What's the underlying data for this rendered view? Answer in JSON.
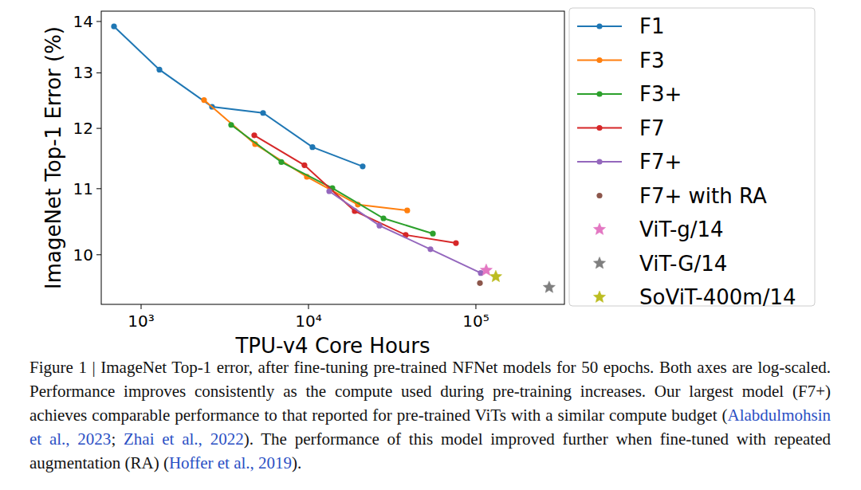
{
  "chart_data": {
    "type": "line",
    "x_label": "TPU-v4 Core Hours",
    "y_label": "ImageNet Top-1 Error (%)",
    "log": true,
    "grid": false,
    "legend": "right",
    "xlim": [
      578,
      338000
    ],
    "ylim": [
      9.31,
      14.21
    ],
    "xticks": [
      {
        "value": 1000,
        "label": "10³"
      },
      {
        "value": 10000,
        "label": "10⁴"
      },
      {
        "value": 100000,
        "label": "10⁵"
      }
    ],
    "yticks": [
      10,
      11,
      12,
      13,
      14
    ],
    "series": [
      {
        "name": "F1",
        "color": "#1f77b4",
        "type": "line",
        "marker": "circle",
        "x": [
          689,
          1287,
          2653,
          5353,
          10560,
          21070
        ],
        "values": [
          13.9,
          13.06,
          12.38,
          12.27,
          11.68,
          11.36
        ]
      },
      {
        "name": "F3",
        "color": "#ff7f0e",
        "type": "line",
        "marker": "circle",
        "x": [
          2377,
          4797,
          9778,
          19720,
          38900
        ],
        "values": [
          12.5,
          11.73,
          11.19,
          10.75,
          10.66
        ]
      },
      {
        "name": "F3+",
        "color": "#2ca02c",
        "type": "line",
        "marker": "circle",
        "x": [
          3451,
          6887,
          13890,
          28050,
          55340
        ],
        "values": [
          12.06,
          11.43,
          11.01,
          10.54,
          10.31
        ]
      },
      {
        "name": "F7",
        "color": "#d62728",
        "type": "line",
        "marker": "circle",
        "x": [
          4744,
          9460,
          18880,
          38070,
          76030
        ],
        "values": [
          11.88,
          11.38,
          10.65,
          10.29,
          10.17
        ]
      },
      {
        "name": "F7+",
        "color": "#9467bd",
        "type": "line",
        "marker": "circle",
        "x": [
          13300,
          26550,
          53540,
          106900
        ],
        "values": [
          10.96,
          10.43,
          10.08,
          9.74
        ]
      },
      {
        "name": "F7+ with RA",
        "color": "#8c564b",
        "type": "scatter",
        "marker": "circle",
        "x": [
          105700
        ],
        "values": [
          9.6
        ]
      },
      {
        "name": "ViT-g/14",
        "color": "#e377c2",
        "type": "scatter",
        "marker": "star",
        "x": [
          115300
        ],
        "values": [
          9.78
        ]
      },
      {
        "name": "ViT-G/14",
        "color": "#7f7f7f",
        "type": "scatter",
        "marker": "star",
        "x": [
          274000
        ],
        "values": [
          9.54
        ]
      },
      {
        "name": "SoViT-400m/14",
        "color": "#bcbd22",
        "type": "scatter",
        "marker": "star",
        "x": [
          131500
        ],
        "values": [
          9.69
        ]
      }
    ],
    "caption": [
      "Figure 1 | ImageNet Top-1 error, after fine-tuning pre-trained NFNet models for 50 epochs. Both axes are log-scaled. Performance improves consistently as the compute used during pre-training increases. Our largest model (F7+) achieves comparable performance to that reported for pre-trained ViTs with a similar compute budget (",
      {
        "cite": "Alabdulmohsin et al., 2023"
      },
      "; ",
      {
        "cite": "Zhai et al., 2022"
      },
      "). The performance of this model improved further when fine-tuned with repeated augmentation (RA) (",
      {
        "cite": "Hoffer et al., 2019"
      },
      ")."
    ]
  }
}
